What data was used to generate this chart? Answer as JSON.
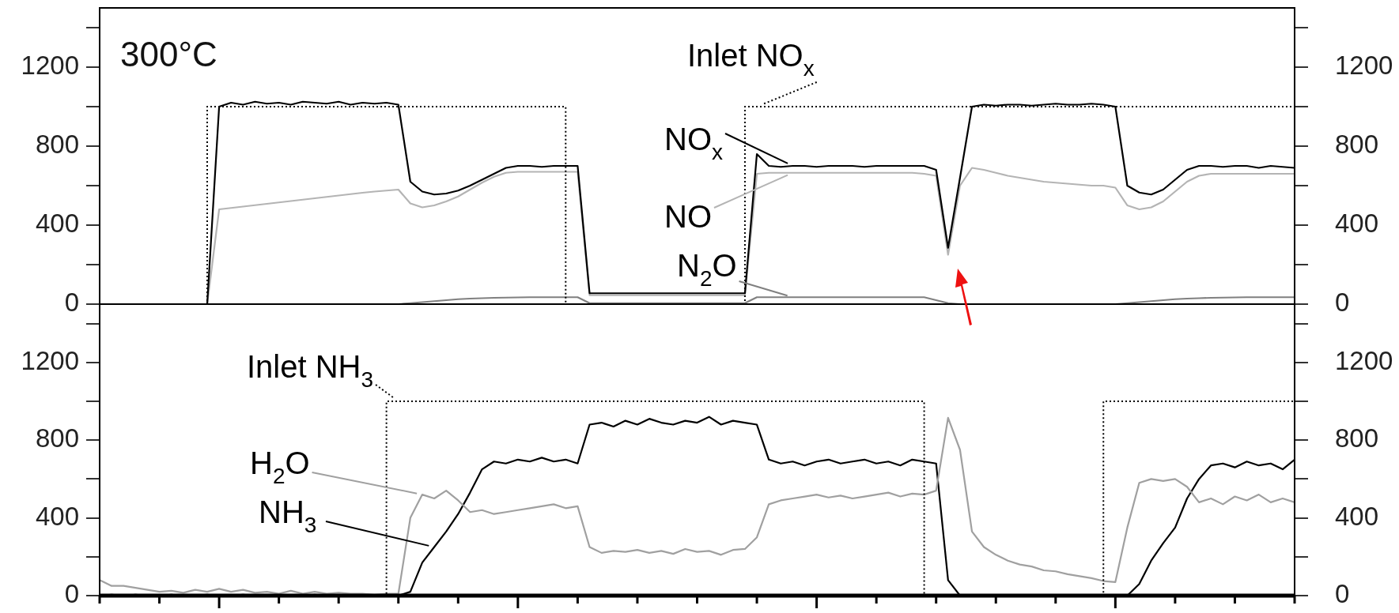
{
  "chart_data": [
    {
      "type": "line",
      "annotations": [
        "300°C"
      ],
      "tick_labels": "y",
      "legend": "bottom right",
      "categories": [
        null,
        null,
        null,
        null,
        null,
        null,
        null,
        null,
        null,
        null,
        null,
        null,
        null,
        null,
        null,
        null,
        null,
        null,
        null,
        null,
        null,
        null,
        null,
        null,
        null,
        null,
        null,
        null,
        null,
        null,
        null,
        null,
        null,
        null,
        null,
        null,
        null,
        null,
        null,
        null,
        null,
        null,
        null,
        null,
        null,
        null,
        null,
        null,
        null,
        null,
        null,
        null,
        null,
        null,
        null,
        null,
        null,
        null,
        null,
        null,
        null,
        null,
        null,
        null,
        null,
        null,
        null,
        null,
        null,
        null,
        null,
        null,
        null,
        null,
        null,
        null,
        null,
        null,
        null,
        null,
        null,
        null,
        null,
        null,
        null,
        null,
        null,
        null,
        null,
        null,
        null,
        null,
        null,
        null,
        null,
        null,
        null,
        null,
        null,
        null,
        null
      ],
      "ylim": [
        0,
        1500
      ],
      "yticks": [
        0,
        {
          "value": 200,
          "label": null
        },
        400,
        {
          "value": 600,
          "label": null
        },
        800,
        {
          "value": 1000,
          "label": null
        },
        1200,
        {
          "value": 1400,
          "label": null
        }
      ],
      "y2lim": [
        0,
        1500
      ],
      "y2ticks": [
        0,
        {
          "value": 200,
          "label": null
        },
        400,
        {
          "value": 600,
          "label": null
        },
        800,
        {
          "value": 1000,
          "label": null
        },
        1200,
        {
          "value": 1400,
          "label": null
        }
      ],
      "series": [
        {
          "name": "Inlet NO$_{x}$",
          "type": "step",
          "line_style": "dotted",
          "color": "#000000",
          "values": [
            0,
            0,
            0,
            0,
            0,
            0,
            0,
            0,
            0,
            0,
            1000,
            1000,
            1000,
            1000,
            1000,
            1000,
            1000,
            1000,
            1000,
            1000,
            1000,
            1000,
            1000,
            1000,
            1000,
            1000,
            1000,
            1000,
            1000,
            1000,
            1000,
            1000,
            1000,
            1000,
            1000,
            1000,
            1000,
            1000,
            1000,
            1000,
            0,
            0,
            0,
            0,
            0,
            0,
            0,
            0,
            0,
            0,
            0,
            0,
            0,
            0,
            0,
            1000,
            1000,
            1000,
            1000,
            1000,
            1000,
            1000,
            1000,
            1000,
            1000,
            1000,
            1000,
            1000,
            1000,
            1000,
            1000,
            1000,
            1000,
            1000,
            1000,
            1000,
            1000,
            1000,
            1000,
            1000,
            1000,
            1000,
            1000,
            1000,
            1000,
            1000,
            1000,
            1000,
            1000,
            1000,
            1000,
            1000,
            1000,
            1000,
            1000,
            1000,
            1000,
            1000,
            1000,
            1000,
            1000
          ]
        },
        {
          "name": "NO$_{x}$",
          "type": "line",
          "color": "#000000",
          "values": [
            0,
            0,
            0,
            0,
            0,
            0,
            0,
            0,
            0,
            0,
            1000,
            1020,
            1010,
            1025,
            1015,
            1020,
            1010,
            1025,
            1020,
            1015,
            1025,
            1010,
            1020,
            1015,
            1020,
            1010,
            620,
            570,
            555,
            560,
            575,
            600,
            630,
            660,
            690,
            700,
            700,
            695,
            700,
            700,
            700,
            55,
            55,
            55,
            55,
            55,
            55,
            55,
            55,
            55,
            55,
            55,
            55,
            55,
            55,
            760,
            700,
            695,
            700,
            700,
            695,
            700,
            700,
            700,
            695,
            700,
            700,
            700,
            700,
            700,
            680,
            285,
            640,
            1000,
            1010,
            1005,
            1010,
            1010,
            1005,
            1010,
            1015,
            1010,
            1010,
            1015,
            1010,
            1000,
            600,
            565,
            555,
            580,
            630,
            680,
            700,
            700,
            695,
            700,
            700,
            690,
            700,
            695,
            690
          ]
        },
        {
          "name": "NO",
          "type": "line",
          "color": "#b4b4b4",
          "values": [
            0,
            0,
            0,
            0,
            0,
            0,
            0,
            0,
            0,
            0,
            480,
            487,
            494,
            501,
            508,
            515,
            522,
            529,
            536,
            543,
            550,
            557,
            564,
            570,
            575,
            580,
            510,
            490,
            500,
            520,
            545,
            580,
            615,
            645,
            665,
            670,
            670,
            670,
            670,
            670,
            670,
            45,
            45,
            45,
            45,
            45,
            45,
            45,
            45,
            45,
            45,
            45,
            45,
            45,
            45,
            660,
            665,
            665,
            665,
            665,
            665,
            665,
            665,
            665,
            665,
            665,
            665,
            665,
            665,
            660,
            650,
            250,
            600,
            690,
            680,
            665,
            650,
            640,
            630,
            620,
            615,
            610,
            605,
            600,
            600,
            590,
            500,
            480,
            490,
            520,
            570,
            620,
            650,
            660,
            660,
            660,
            660,
            660,
            660,
            660,
            660
          ]
        },
        {
          "name": "N$_{2}$O",
          "type": "line",
          "color": "#808080",
          "values": [
            0,
            0,
            0,
            0,
            0,
            0,
            0,
            0,
            0,
            0,
            0,
            0,
            0,
            0,
            0,
            0,
            0,
            0,
            0,
            0,
            0,
            0,
            0,
            0,
            0,
            0,
            5,
            10,
            15,
            20,
            25,
            28,
            30,
            32,
            33,
            34,
            35,
            35,
            35,
            35,
            35,
            5,
            5,
            5,
            5,
            5,
            5,
            5,
            5,
            5,
            5,
            5,
            5,
            5,
            5,
            35,
            35,
            35,
            35,
            35,
            35,
            35,
            35,
            35,
            35,
            35,
            35,
            35,
            35,
            35,
            20,
            5,
            0,
            0,
            0,
            0,
            0,
            0,
            0,
            0,
            0,
            0,
            0,
            0,
            0,
            0,
            5,
            10,
            15,
            20,
            25,
            28,
            30,
            32,
            33,
            34,
            35,
            35,
            35,
            35,
            35
          ]
        }
      ]
    },
    {
      "type": "line",
      "tick_labels": "y",
      "legend": "top left",
      "categories": [
        null,
        null,
        null,
        null,
        null,
        null,
        null,
        null,
        null,
        null,
        null,
        null,
        null,
        null,
        null,
        null,
        null,
        null,
        null,
        null,
        null,
        null,
        null,
        null,
        null,
        null,
        null,
        null,
        null,
        null,
        null,
        null,
        null,
        null,
        null,
        null,
        null,
        null,
        null,
        null,
        null,
        null,
        null,
        null,
        null,
        null,
        null,
        null,
        null,
        null,
        null,
        null,
        null,
        null,
        null,
        null,
        null,
        null,
        null,
        null,
        null,
        null,
        null,
        null,
        null,
        null,
        null,
        null,
        null,
        null,
        null,
        null,
        null,
        null,
        null,
        null,
        null,
        null,
        null,
        null,
        null,
        null,
        null,
        null,
        null,
        null,
        null,
        null,
        null,
        null,
        null,
        null,
        null,
        null,
        null,
        null,
        null,
        null,
        null,
        null,
        null
      ],
      "ylim": [
        0,
        1500
      ],
      "yticks": [
        0,
        {
          "value": 200,
          "label": null
        },
        400,
        {
          "value": 600,
          "label": null
        },
        800,
        {
          "value": 1000,
          "label": null
        },
        1200,
        {
          "value": 1400,
          "label": null
        }
      ],
      "y2lim": [
        0,
        1500
      ],
      "y2ticks": [
        0,
        {
          "value": 200,
          "label": null
        },
        400,
        {
          "value": 600,
          "label": null
        },
        800,
        {
          "value": 1000,
          "label": null
        },
        1200,
        {
          "value": 1400,
          "label": null
        }
      ],
      "series": [
        {
          "name": "Inlet NH$_{3}$",
          "type": "step",
          "line_style": "dotted",
          "color": "#000000",
          "values": [
            0,
            0,
            0,
            0,
            0,
            0,
            0,
            0,
            0,
            0,
            0,
            0,
            0,
            0,
            0,
            0,
            0,
            0,
            0,
            0,
            0,
            0,
            0,
            0,
            0,
            1000,
            1000,
            1000,
            1000,
            1000,
            1000,
            1000,
            1000,
            1000,
            1000,
            1000,
            1000,
            1000,
            1000,
            1000,
            1000,
            1000,
            1000,
            1000,
            1000,
            1000,
            1000,
            1000,
            1000,
            1000,
            1000,
            1000,
            1000,
            1000,
            1000,
            1000,
            1000,
            1000,
            1000,
            1000,
            1000,
            1000,
            1000,
            1000,
            1000,
            1000,
            1000,
            1000,
            1000,
            1000,
            0,
            0,
            0,
            0,
            0,
            0,
            0,
            0,
            0,
            0,
            0,
            0,
            0,
            0,
            0,
            1000,
            1000,
            1000,
            1000,
            1000,
            1000,
            1000,
            1000,
            1000,
            1000,
            1000,
            1000,
            1000,
            1000,
            1000,
            1000
          ]
        },
        {
          "name": "H$_{2}$O",
          "type": "line",
          "color": "#a0a0a0",
          "values": [
            80,
            50,
            50,
            40,
            30,
            20,
            25,
            15,
            30,
            20,
            35,
            20,
            30,
            15,
            20,
            10,
            25,
            10,
            20,
            10,
            15,
            10,
            10,
            5,
            10,
            10,
            400,
            520,
            500,
            540,
            490,
            430,
            440,
            420,
            430,
            440,
            450,
            460,
            470,
            450,
            460,
            250,
            220,
            230,
            225,
            235,
            220,
            230,
            215,
            240,
            225,
            230,
            210,
            235,
            240,
            300,
            470,
            490,
            500,
            510,
            520,
            505,
            515,
            500,
            510,
            520,
            530,
            510,
            525,
            520,
            540,
            915,
            750,
            330,
            250,
            210,
            180,
            160,
            150,
            130,
            125,
            110,
            100,
            90,
            75,
            70,
            350,
            580,
            600,
            590,
            600,
            560,
            480,
            500,
            470,
            510,
            490,
            520,
            480,
            500,
            480
          ]
        },
        {
          "name": "NH$_{3}$",
          "type": "line",
          "color": "#000000",
          "values": [
            0,
            5,
            0,
            5,
            0,
            0,
            5,
            0,
            0,
            5,
            0,
            0,
            5,
            0,
            0,
            5,
            0,
            0,
            5,
            0,
            0,
            5,
            0,
            0,
            5,
            0,
            20,
            170,
            250,
            330,
            420,
            530,
            650,
            690,
            680,
            700,
            690,
            710,
            690,
            700,
            680,
            880,
            890,
            870,
            900,
            880,
            910,
            890,
            880,
            900,
            890,
            920,
            880,
            900,
            890,
            880,
            700,
            680,
            690,
            670,
            690,
            700,
            680,
            690,
            700,
            680,
            690,
            670,
            700,
            690,
            680,
            80,
            0,
            0,
            0,
            0,
            0,
            0,
            0,
            0,
            0,
            0,
            0,
            0,
            0,
            0,
            0,
            60,
            180,
            270,
            350,
            500,
            600,
            670,
            680,
            660,
            690,
            670,
            680,
            650,
            700
          ]
        }
      ]
    }
  ]
}
